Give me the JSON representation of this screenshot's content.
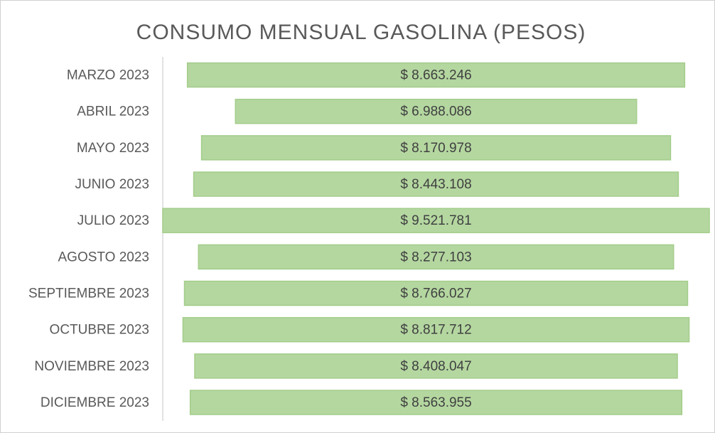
{
  "chart_data": {
    "type": "funnel",
    "title": "CONSUMO MENSUAL GASOLINA (PESOS)",
    "categories": [
      "MARZO 2023",
      "ABRIL 2023",
      "MAYO 2023",
      "JUNIO 2023",
      "JULIO 2023",
      "AGOSTO 2023",
      "SEPTIEMBRE 2023",
      "OCTUBRE 2023",
      "NOVIEMBRE 2023",
      "DICIEMBRE 2023"
    ],
    "values": [
      8663246,
      6988086,
      8170978,
      8443108,
      9521781,
      8277103,
      8766027,
      8817712,
      8408047,
      8563955
    ],
    "value_labels": [
      "$ 8.663.246",
      "$ 6.988.086",
      "$ 8.170.978",
      "$ 8.443.108",
      "$ 9.521.781",
      "$ 8.277.103",
      "$ 8.766.027",
      "$ 8.817.712",
      "$ 8.408.047",
      "$ 8.563.955"
    ],
    "color": "#b4d7a0"
  }
}
